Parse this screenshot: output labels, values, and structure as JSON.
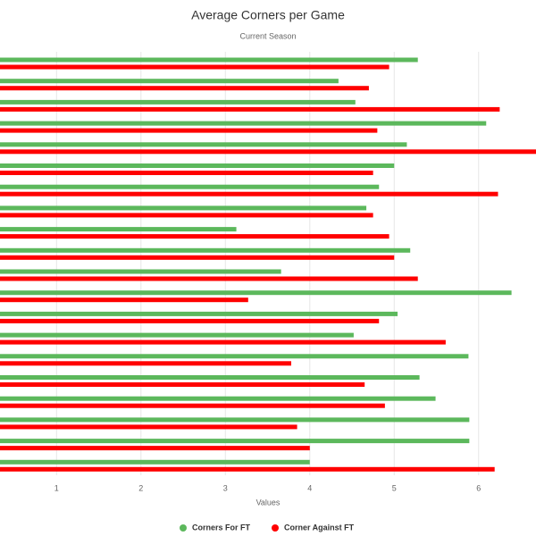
{
  "chart_data": {
    "type": "bar",
    "orientation": "horizontal",
    "title": "Average Corners per Game",
    "subtitle": "Current Season",
    "xlabel": "Values",
    "categories": [
      null,
      null,
      null,
      null,
      null,
      null,
      null,
      null,
      null,
      null,
      null,
      null,
      null,
      null,
      null,
      null,
      null,
      null,
      null,
      null
    ],
    "series": [
      {
        "name": "Corners For FT",
        "color": "#5cb85c",
        "values": [
          5.28,
          4.34,
          4.54,
          6.09,
          5.15,
          5.0,
          4.82,
          4.67,
          3.13,
          5.19,
          3.66,
          6.39,
          5.04,
          4.52,
          5.88,
          5.3,
          5.49,
          5.89,
          5.89,
          4.0
        ]
      },
      {
        "name": "Corner Against FT",
        "color": "#ff0000",
        "values": [
          4.94,
          4.7,
          6.25,
          4.8,
          6.7,
          4.75,
          6.23,
          4.75,
          4.94,
          5.0,
          5.28,
          3.27,
          4.82,
          5.61,
          3.78,
          4.65,
          4.89,
          3.85,
          4.0,
          6.19
        ]
      }
    ],
    "xlim": [
      0.33,
      6.68
    ],
    "xticks": [
      1,
      2,
      3,
      4,
      5,
      6
    ],
    "grid": true,
    "legend": "bottom"
  }
}
